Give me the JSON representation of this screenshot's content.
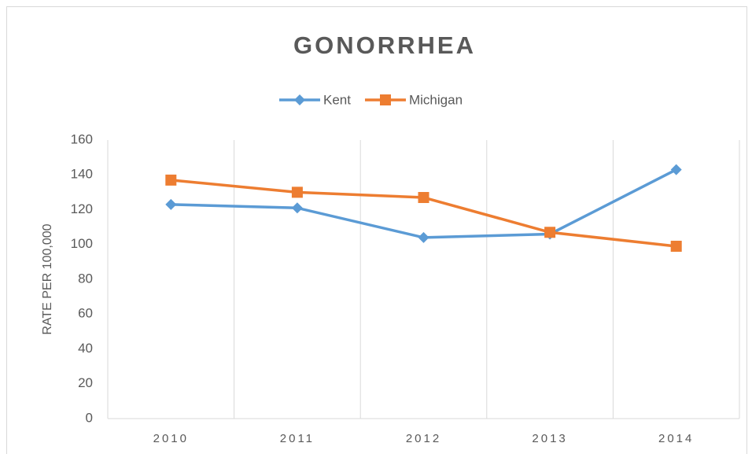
{
  "chart_data": {
    "type": "line",
    "title": "GONORRHEA",
    "y_label": "RATE PER 100,000",
    "categories": [
      "2010",
      "2011",
      "2012",
      "2013",
      "2014"
    ],
    "series": [
      {
        "name": "Kent",
        "color": "#5b9bd5",
        "marker": "diamond",
        "values": [
          123,
          121,
          104,
          106,
          143
        ]
      },
      {
        "name": "Michigan",
        "color": "#ed7d31",
        "marker": "square",
        "values": [
          137,
          130,
          127,
          107,
          99
        ]
      }
    ],
    "ylim": [
      0,
      160
    ],
    "yticks": [
      0,
      20,
      40,
      60,
      80,
      100,
      120,
      140,
      160
    ],
    "grid": true,
    "legend": "top"
  }
}
